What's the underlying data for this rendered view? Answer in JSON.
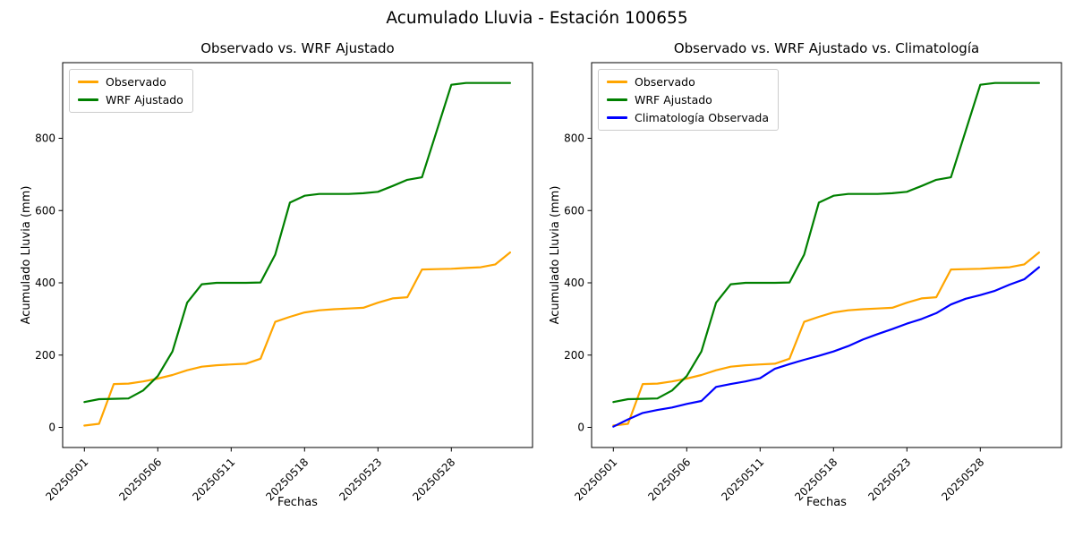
{
  "figure": {
    "suptitle": "Acumulado Lluvia - Estación 100655",
    "background": "#ffffff",
    "axis_color": "#000000",
    "text_color": "#000000"
  },
  "chart_data": [
    {
      "type": "line",
      "title": "Observado vs. WRF Ajustado",
      "xlabel": "Fechas",
      "ylabel": "Acumulado Lluvia (mm)",
      "grid": false,
      "legend_position": "upper left",
      "n_points": 30,
      "x_tick_positions": [
        0,
        5,
        10,
        15,
        20,
        25
      ],
      "x_tick_labels": [
        "20250501",
        "20250506",
        "20250511",
        "20250518",
        "20250523",
        "20250528"
      ],
      "y_ticks": [
        0,
        200,
        400,
        600,
        800
      ],
      "ylim": [
        -55,
        1009
      ],
      "xlim": [
        -1.45,
        30.45
      ],
      "series": [
        {
          "name": "Observado",
          "color": "#FFA500",
          "values": [
            5,
            10,
            120,
            121,
            127,
            135,
            145,
            158,
            168,
            172,
            174,
            176,
            190,
            292,
            306,
            318,
            324,
            327,
            329,
            331,
            345,
            357,
            360,
            437,
            438,
            439,
            441,
            443,
            451,
            484
          ]
        },
        {
          "name": "WRF Ajustado",
          "color": "#008000",
          "values": [
            70,
            78,
            79,
            80,
            102,
            142,
            210,
            345,
            396,
            400,
            400,
            400,
            401,
            478,
            622,
            641,
            646,
            646,
            646,
            648,
            652,
            668,
            685,
            692,
            820,
            948,
            953,
            953,
            953,
            953
          ]
        }
      ]
    },
    {
      "type": "line",
      "title": "Observado vs. WRF Ajustado vs. Climatología",
      "xlabel": "Fechas",
      "ylabel": "Acumulado Lluvia (mm)",
      "grid": false,
      "legend_position": "upper left",
      "n_points": 30,
      "x_tick_positions": [
        0,
        5,
        10,
        15,
        20,
        25
      ],
      "x_tick_labels": [
        "20250501",
        "20250506",
        "20250511",
        "20250518",
        "20250523",
        "20250528"
      ],
      "y_ticks": [
        0,
        200,
        400,
        600,
        800
      ],
      "ylim": [
        -55,
        1009
      ],
      "xlim": [
        -1.45,
        30.45
      ],
      "series": [
        {
          "name": "Observado",
          "color": "#FFA500",
          "values": [
            5,
            10,
            120,
            121,
            127,
            135,
            145,
            158,
            168,
            172,
            174,
            176,
            190,
            292,
            306,
            318,
            324,
            327,
            329,
            331,
            345,
            357,
            360,
            437,
            438,
            439,
            441,
            443,
            451,
            484
          ]
        },
        {
          "name": "WRF Ajustado",
          "color": "#008000",
          "values": [
            70,
            78,
            79,
            80,
            102,
            142,
            210,
            345,
            396,
            400,
            400,
            400,
            401,
            478,
            622,
            641,
            646,
            646,
            646,
            648,
            652,
            668,
            685,
            692,
            820,
            948,
            953,
            953,
            953,
            953
          ]
        },
        {
          "name": "Climatología Observada",
          "color": "#0000FF",
          "values": [
            2,
            22,
            40,
            48,
            55,
            65,
            73,
            112,
            120,
            127,
            136,
            162,
            175,
            187,
            198,
            210,
            225,
            243,
            258,
            272,
            287,
            300,
            316,
            340,
            356,
            366,
            378,
            395,
            410,
            443
          ]
        }
      ]
    }
  ]
}
